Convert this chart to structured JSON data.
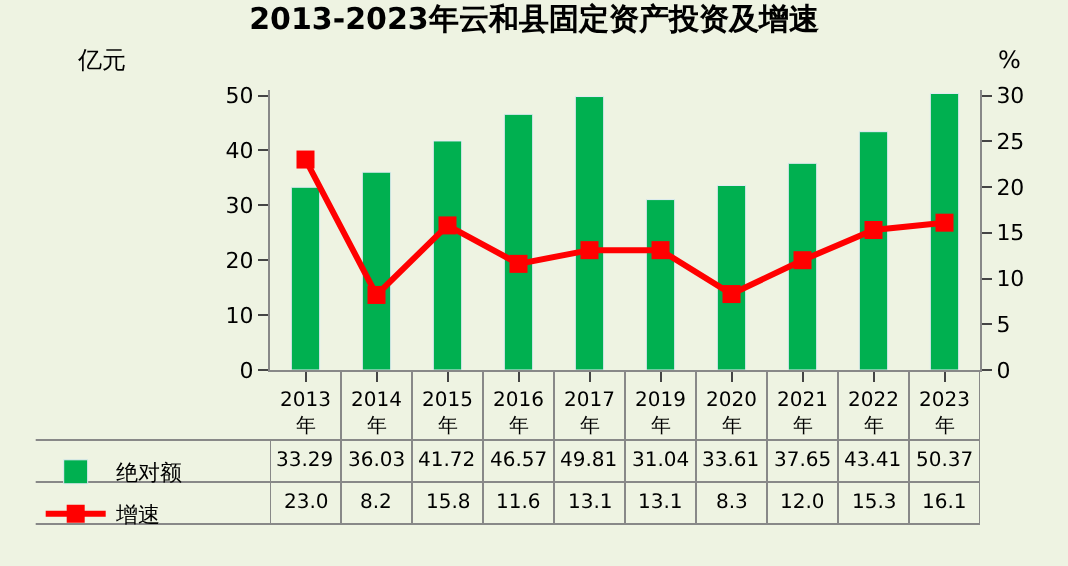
{
  "chart_data": {
    "type": "bar",
    "title": "2013-2023年云和县固定资产投资及增速",
    "ylabel": "亿元",
    "y2label": "%",
    "categories": [
      "2013年",
      "2014年",
      "2015年",
      "2016年",
      "2017年",
      "2019年",
      "2020年",
      "2021年",
      "2022年",
      "2023年"
    ],
    "series": [
      {
        "name": "绝对额",
        "color": "#00b050",
        "values": [
          33.29,
          36.03,
          41.72,
          46.57,
          49.81,
          31.04,
          33.61,
          37.65,
          43.41,
          50.37
        ],
        "value_labels": [
          "33.29",
          "36.03",
          "41.72",
          "46.57",
          "49.81",
          "31.04",
          "33.61",
          "37.65",
          "43.41",
          "50.37"
        ]
      },
      {
        "name": "增速",
        "type": "line",
        "axis": "y2",
        "color": "#ff0000",
        "marker": "square",
        "line_style": "solid",
        "values": [
          23.0,
          8.2,
          15.8,
          11.6,
          13.1,
          13.1,
          8.3,
          12.0,
          15.3,
          16.1
        ],
        "value_labels": [
          "23.0",
          "8.2",
          "15.8",
          "11.6",
          "13.1",
          "13.1",
          "8.3",
          "12.0",
          "15.3",
          "16.1"
        ]
      }
    ],
    "ylim": [
      0,
      51
    ],
    "yticks": [
      0,
      10,
      20,
      30,
      40,
      50
    ],
    "y2lim": [
      0,
      30.6
    ],
    "y2ticks": [
      0,
      5,
      10,
      15,
      20,
      25,
      30
    ],
    "legend": "bottom left",
    "grid": false
  }
}
